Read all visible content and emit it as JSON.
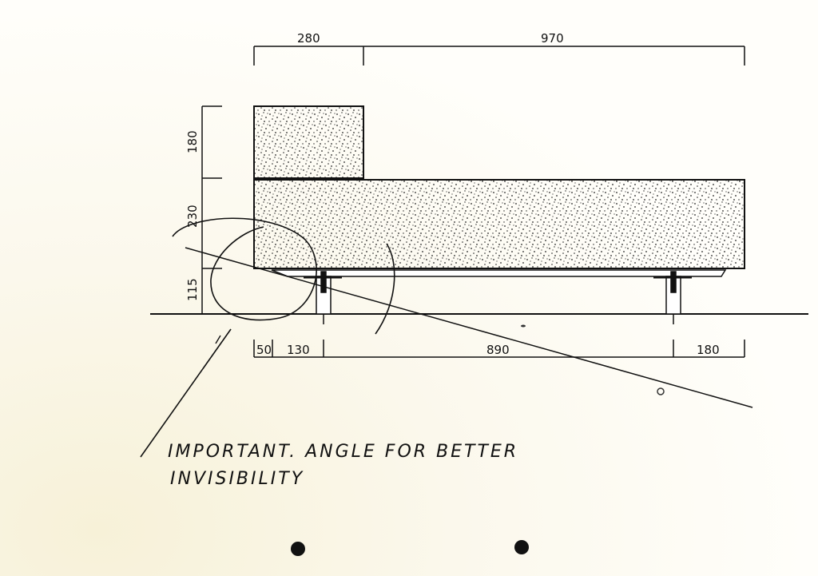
{
  "dimensions": {
    "top": [
      "280",
      "970"
    ],
    "left": [
      "180",
      "230",
      "115"
    ],
    "bottom": [
      "50",
      "130",
      "890",
      "180"
    ]
  },
  "note": {
    "line1": "IMPORTANT. ANGLE FOR BETTER",
    "line2": "INVISIBILITY"
  },
  "colors": {
    "paper": "#fffefa",
    "ink": "#111111",
    "speckle": "#222222"
  }
}
